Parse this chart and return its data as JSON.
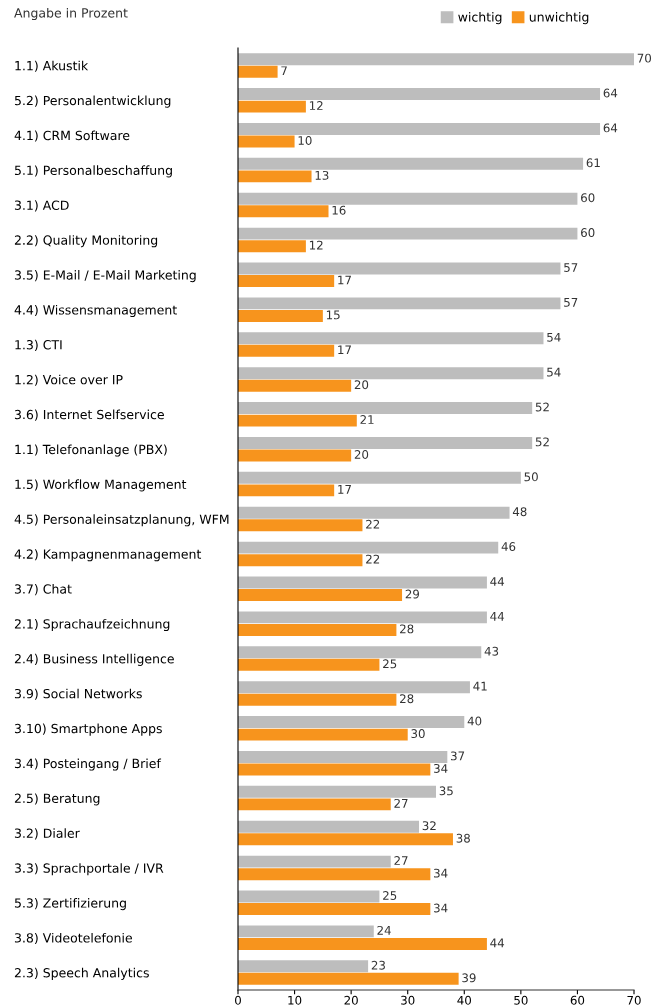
{
  "chart_data": {
    "type": "bar",
    "orientation": "horizontal",
    "categories": [
      "1.1) Akustik",
      "5.2) Personalentwicklung",
      "4.1) CRM Software",
      "5.1) Personalbeschaffung",
      "3.1) ACD",
      "2.2) Quality Monitoring",
      "3.5) E-Mail / E-Mail Marketing",
      "4.4) Wissensmanagement",
      "1.3) CTI",
      "1.2) Voice over IP",
      "3.6) Internet Selfservice",
      "1.1) Telefonanlage (PBX)",
      "1.5) Workflow Management",
      "4.5) Personaleinsatzplanung, WFM",
      "4.2) Kampagnenmanagement",
      "3.7) Chat",
      "2.1) Sprachaufzeichnung",
      "2.4) Business Intelligence",
      "3.9) Social Networks",
      "3.10) Smartphone Apps",
      "3.4) Posteingang / Brief",
      "2.5) Beratung",
      "3.2) Dialer",
      "3.3) Sprachportale / IVR",
      "5.3) Zertifizierung",
      "3.8) Videotelefonie",
      "2.3) Speech Analytics"
    ],
    "series": [
      {
        "name": "wichtig",
        "color": "#bdbdbd",
        "values": [
          70,
          64,
          64,
          61,
          60,
          60,
          57,
          57,
          54,
          54,
          52,
          52,
          50,
          48,
          46,
          44,
          44,
          43,
          41,
          40,
          37,
          35,
          32,
          27,
          25,
          24,
          23
        ]
      },
      {
        "name": "unwichtig",
        "color": "#f7941d",
        "values": [
          7,
          12,
          10,
          13,
          16,
          12,
          17,
          15,
          17,
          20,
          21,
          20,
          17,
          22,
          22,
          29,
          28,
          25,
          28,
          30,
          34,
          27,
          38,
          34,
          34,
          44,
          39
        ]
      }
    ],
    "data_labels": true,
    "xlim": [
      0,
      70
    ],
    "xticks": [
      0,
      10,
      20,
      30,
      40,
      50,
      60,
      70
    ],
    "grid": false,
    "legend": "top right",
    "annotations": [
      "Angabe in Prozent"
    ]
  }
}
